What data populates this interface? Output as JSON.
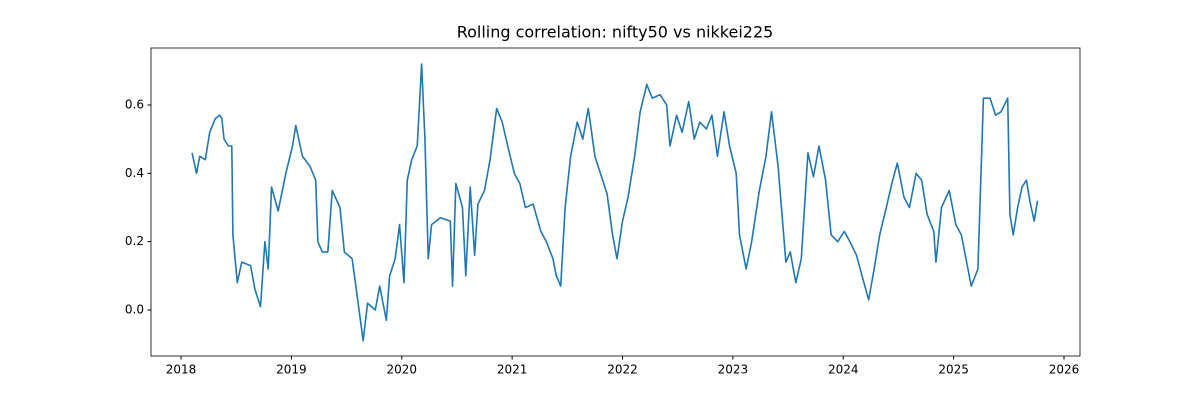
{
  "chart_data": {
    "type": "line",
    "title": "Rolling correlation: nifty50 vs nikkei225",
    "x": [
      2018.1,
      2018.14,
      2018.17,
      2018.22,
      2018.26,
      2018.31,
      2018.35,
      2018.37,
      2018.39,
      2018.43,
      2018.46,
      2018.47,
      2018.51,
      2018.55,
      2018.63,
      2018.67,
      2018.72,
      2018.76,
      2018.79,
      2018.82,
      2018.88,
      2018.95,
      2019.01,
      2019.04,
      2019.1,
      2019.17,
      2019.22,
      2019.24,
      2019.28,
      2019.33,
      2019.37,
      2019.44,
      2019.48,
      2019.55,
      2019.58,
      2019.65,
      2019.69,
      2019.76,
      2019.8,
      2019.86,
      2019.89,
      2019.94,
      2019.98,
      2020.02,
      2020.05,
      2020.09,
      2020.14,
      2020.18,
      2020.21,
      2020.24,
      2020.27,
      2020.35,
      2020.44,
      2020.46,
      2020.49,
      2020.55,
      2020.58,
      2020.62,
      2020.66,
      2020.69,
      2020.75,
      2020.8,
      2020.86,
      2020.91,
      2020.96,
      2021.02,
      2021.07,
      2021.12,
      2021.19,
      2021.26,
      2021.31,
      2021.37,
      2021.4,
      2021.44,
      2021.48,
      2021.53,
      2021.59,
      2021.64,
      2021.69,
      2021.75,
      2021.8,
      2021.86,
      2021.91,
      2021.95,
      2022.0,
      2022.05,
      2022.11,
      2022.16,
      2022.22,
      2022.27,
      2022.34,
      2022.4,
      2022.43,
      2022.49,
      2022.54,
      2022.6,
      2022.65,
      2022.7,
      2022.76,
      2022.81,
      2022.86,
      2022.92,
      2022.97,
      2023.03,
      2023.06,
      2023.12,
      2023.17,
      2023.24,
      2023.3,
      2023.35,
      2023.41,
      2023.44,
      2023.48,
      2023.52,
      2023.57,
      2023.62,
      2023.68,
      2023.73,
      2023.78,
      2023.84,
      2023.89,
      2023.95,
      2024.01,
      2024.06,
      2024.12,
      2024.17,
      2024.23,
      2024.28,
      2024.33,
      2024.39,
      2024.44,
      2024.49,
      2024.55,
      2024.6,
      2024.66,
      2024.71,
      2024.76,
      2024.82,
      2024.84,
      2024.89,
      2024.96,
      2025.02,
      2025.07,
      2025.13,
      2025.16,
      2025.22,
      2025.27,
      2025.33,
      2025.38,
      2025.43,
      2025.49,
      2025.51,
      2025.54,
      2025.58,
      2025.62,
      2025.66,
      2025.69,
      2025.73,
      2025.76
    ],
    "series": [
      {
        "color": "#1f77b4",
        "values": [
          0.46,
          0.4,
          0.45,
          0.44,
          0.52,
          0.56,
          0.57,
          0.56,
          0.5,
          0.48,
          0.48,
          0.22,
          0.08,
          0.14,
          0.13,
          0.06,
          0.01,
          0.2,
          0.12,
          0.36,
          0.29,
          0.4,
          0.48,
          0.54,
          0.45,
          0.42,
          0.38,
          0.2,
          0.17,
          0.17,
          0.35,
          0.3,
          0.17,
          0.15,
          0.08,
          -0.09,
          0.02,
          0.0,
          0.07,
          -0.03,
          0.1,
          0.15,
          0.25,
          0.08,
          0.38,
          0.44,
          0.48,
          0.72,
          0.5,
          0.15,
          0.25,
          0.27,
          0.26,
          0.07,
          0.37,
          0.3,
          0.1,
          0.36,
          0.16,
          0.31,
          0.35,
          0.44,
          0.59,
          0.55,
          0.48,
          0.4,
          0.37,
          0.3,
          0.31,
          0.23,
          0.2,
          0.15,
          0.1,
          0.07,
          0.3,
          0.45,
          0.55,
          0.5,
          0.59,
          0.45,
          0.4,
          0.34,
          0.22,
          0.15,
          0.26,
          0.33,
          0.45,
          0.58,
          0.66,
          0.62,
          0.63,
          0.6,
          0.48,
          0.57,
          0.52,
          0.61,
          0.5,
          0.55,
          0.53,
          0.57,
          0.45,
          0.58,
          0.48,
          0.4,
          0.22,
          0.12,
          0.2,
          0.35,
          0.45,
          0.58,
          0.42,
          0.3,
          0.14,
          0.17,
          0.08,
          0.15,
          0.46,
          0.39,
          0.48,
          0.38,
          0.22,
          0.2,
          0.23,
          0.2,
          0.16,
          0.1,
          0.03,
          0.12,
          0.22,
          0.3,
          0.37,
          0.43,
          0.33,
          0.3,
          0.4,
          0.38,
          0.28,
          0.23,
          0.14,
          0.3,
          0.35,
          0.25,
          0.22,
          0.12,
          0.07,
          0.12,
          0.62,
          0.62,
          0.57,
          0.58,
          0.62,
          0.28,
          0.22,
          0.3,
          0.36,
          0.38,
          0.32,
          0.26,
          0.32
        ]
      }
    ],
    "xlim": [
      2017.728,
      2026.145
    ],
    "xticks": [
      2018,
      2019,
      2020,
      2021,
      2022,
      2023,
      2024,
      2025,
      2026
    ],
    "ylim": [
      -0.1346,
      0.7668
    ],
    "yticks": [
      {
        "value": 0,
        "label": "0.0"
      },
      0.2,
      0.4,
      0.6
    ]
  }
}
